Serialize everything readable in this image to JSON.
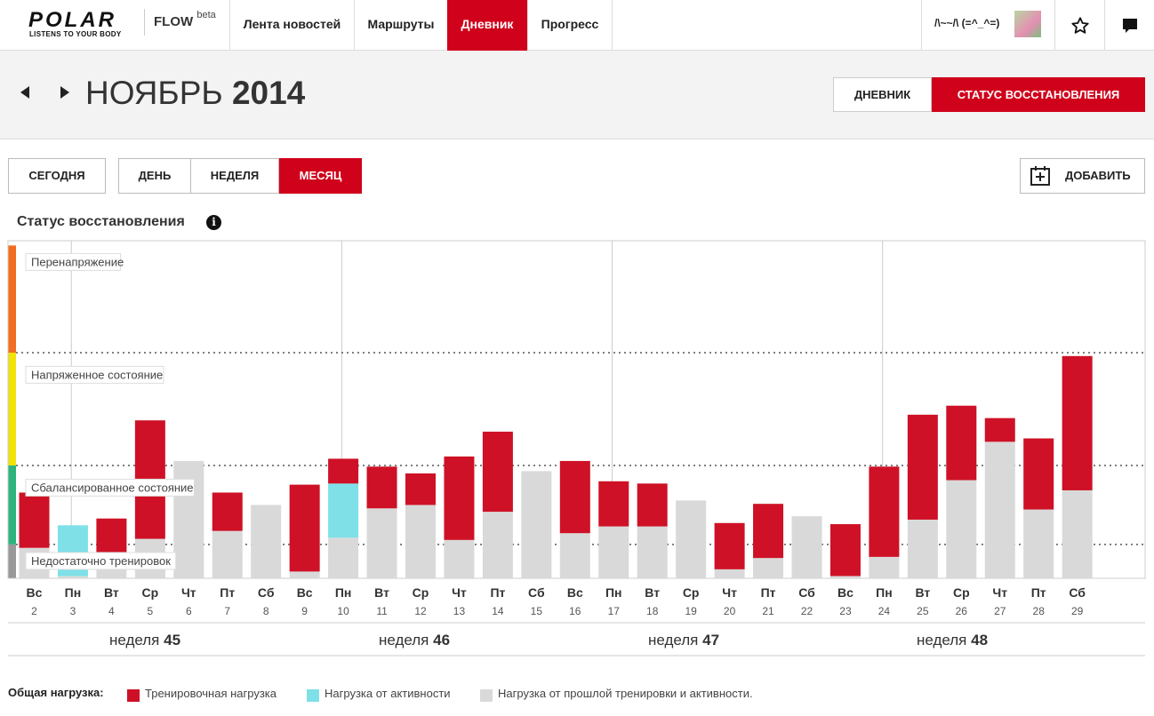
{
  "brand": {
    "logo": "POLAR",
    "tagline": "LISTENS TO YOUR BODY",
    "product": "FLOW",
    "product_suffix": "beta"
  },
  "nav": {
    "items": [
      "Лента новостей",
      "Маршруты",
      "Дневник",
      "Прогресс"
    ],
    "active": "Дневник"
  },
  "user": {
    "name": "/\\~~/\\ (=^_^=)"
  },
  "header": {
    "month": "НОЯБРЬ",
    "year": "2014",
    "view_diary": "ДНЕВНИК",
    "view_recovery": "СТАТУС ВОССТАНОВЛЕНИЯ"
  },
  "controls": {
    "today": "СЕГОДНЯ",
    "day": "ДЕНЬ",
    "week": "НЕДЕЛЯ",
    "month": "МЕСЯЦ",
    "active": "МЕСЯЦ",
    "add": "ДОБАВИТЬ"
  },
  "section_title": "Статус восстановления",
  "colors": {
    "accent": "#d0021b",
    "training": "#ce1126",
    "activity": "#7fe0e8",
    "previous": "#d9d9d9",
    "zone_over": "#f26d21",
    "zone_strain": "#f0e20a",
    "zone_balanced": "#2bb57c",
    "zone_under": "#999999"
  },
  "chart_data": {
    "type": "bar",
    "stacked": true,
    "zones": [
      "Перенапряжение",
      "Напряженное состояние",
      "Сбалансированное состояние",
      "Недостаточно тренировок"
    ],
    "days": [
      "Вс",
      "Пн",
      "Вт",
      "Ср",
      "Чт",
      "Пт",
      "Сб",
      "Вс",
      "Пн",
      "Вт",
      "Ср",
      "Чт",
      "Пт",
      "Сб",
      "Вс",
      "Пн",
      "Вт",
      "Ср",
      "Чт",
      "Пт",
      "Сб",
      "Вс",
      "Пн",
      "Вт",
      "Ср",
      "Чт",
      "Пт",
      "Сб"
    ],
    "dates": [
      "2",
      "3",
      "4",
      "5",
      "6",
      "7",
      "8",
      "9",
      "10",
      "11",
      "12",
      "13",
      "14",
      "15",
      "16",
      "17",
      "18",
      "19",
      "20",
      "21",
      "22",
      "23",
      "24",
      "25",
      "26",
      "27",
      "28",
      "29"
    ],
    "series": [
      {
        "name": "Нагрузка от прошлой тренировки и активности.",
        "values": [
          0.27,
          0.02,
          0.1,
          0.35,
          1.04,
          0.42,
          0.65,
          0.06,
          0.36,
          0.62,
          0.65,
          0.34,
          0.59,
          0.95,
          0.4,
          0.46,
          0.46,
          0.69,
          0.08,
          0.18,
          0.55,
          0.02,
          0.19,
          0.52,
          0.87,
          1.21,
          0.61,
          0.78
        ]
      },
      {
        "name": "Нагрузка от активности",
        "values": [
          0,
          0.45,
          0,
          0,
          0,
          0,
          0,
          0,
          0.48,
          0,
          0,
          0,
          0,
          0,
          0,
          0,
          0,
          0,
          0,
          0,
          0,
          0,
          0,
          0,
          0,
          0,
          0,
          0
        ]
      },
      {
        "name": "Тренировочная нагрузка",
        "values": [
          0.49,
          0,
          0.43,
          1.05,
          0,
          0.34,
          0,
          0.77,
          0.22,
          0.37,
          0.28,
          0.74,
          0.71,
          0,
          0.64,
          0.4,
          0.38,
          0,
          0.41,
          0.48,
          0,
          0.46,
          0.8,
          0.93,
          0.66,
          0.21,
          0.63,
          1.19
        ]
      }
    ],
    "level_markers": [
      1.0,
      2.0
    ],
    "ymax": 2.95,
    "weeks": [
      {
        "label": "неделя",
        "num": "45"
      },
      {
        "label": "неделя",
        "num": "46"
      },
      {
        "label": "неделя",
        "num": "47"
      },
      {
        "label": "неделя",
        "num": "48"
      }
    ],
    "week_start_index": [
      1,
      8,
      15,
      22
    ]
  },
  "legend": {
    "title": "Общая нагрузка:",
    "items": [
      "Тренировочная нагрузка",
      "Нагрузка от активности",
      "Нагрузка от прошлой тренировки и активности."
    ]
  }
}
